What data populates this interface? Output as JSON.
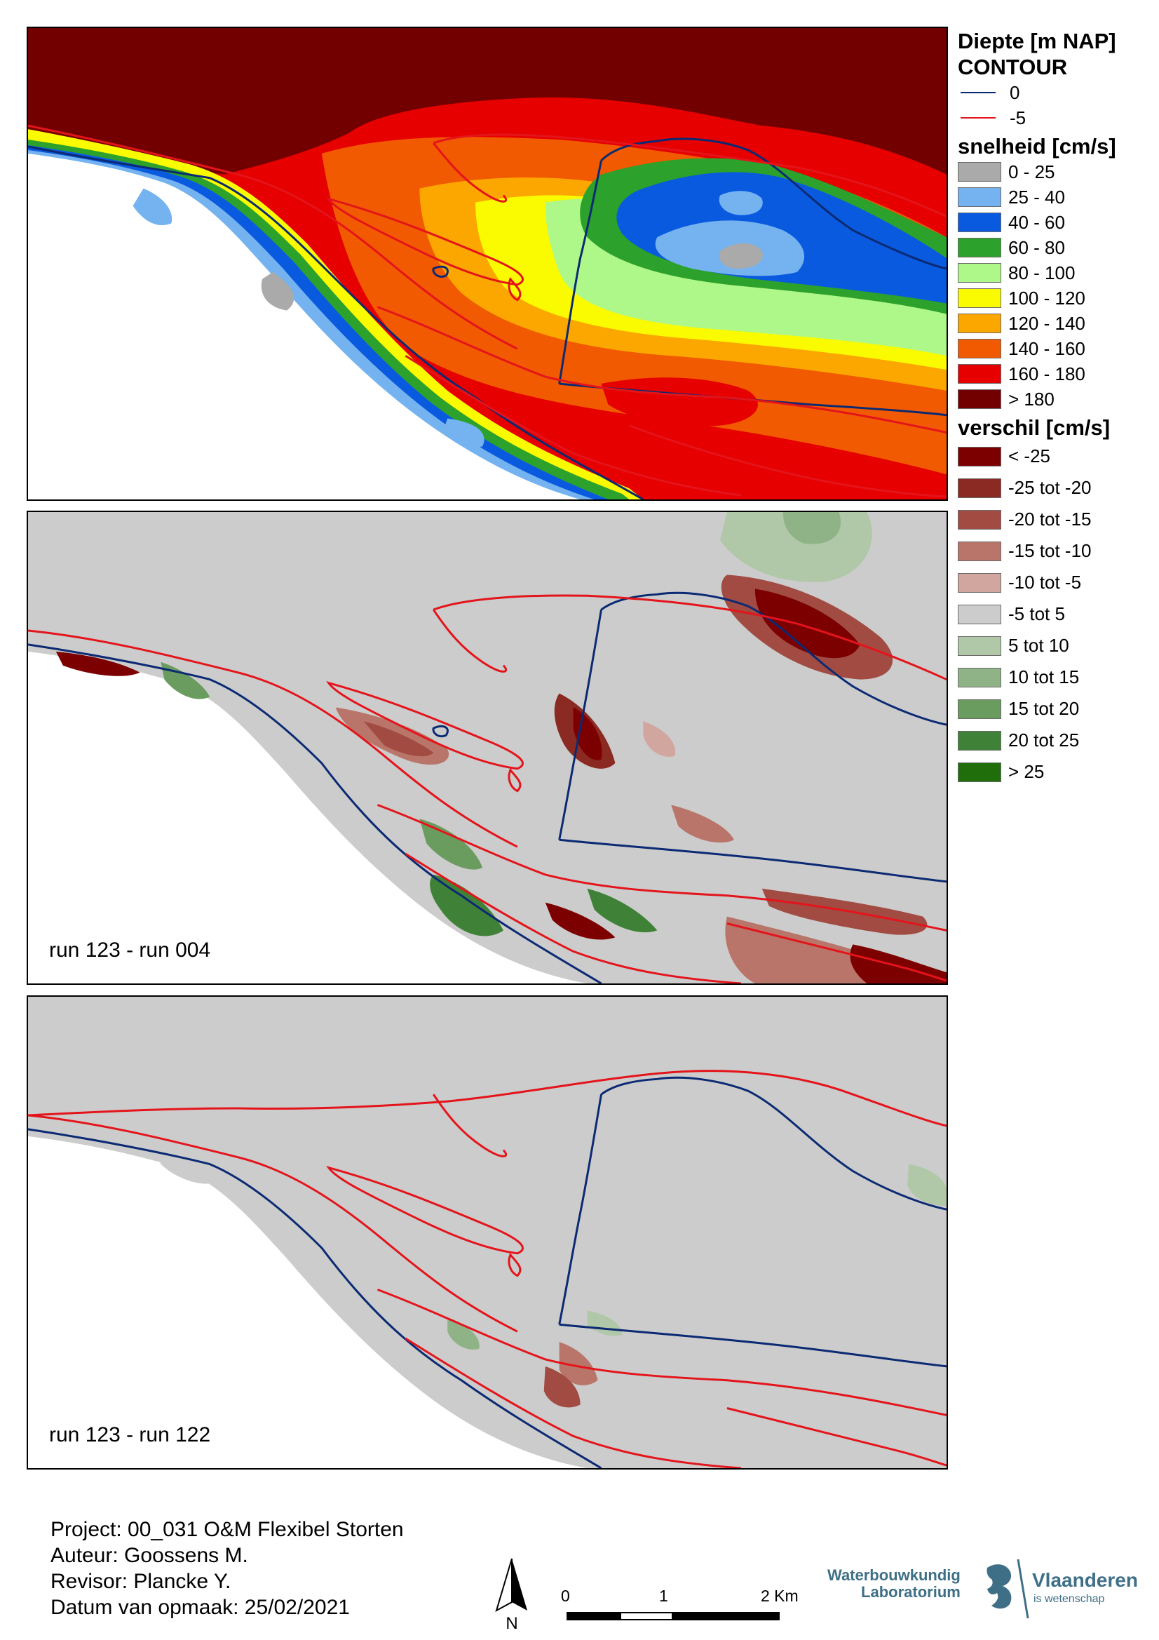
{
  "legend": {
    "depth_title": "Diepte [m NAP]",
    "contour_title": "CONTOUR",
    "contours": [
      {
        "label": "0",
        "color": "#0b2a73"
      },
      {
        "label": "-5",
        "color": "#e4141b"
      }
    ],
    "speed_title": "snelheid [cm/s]",
    "speed_classes": [
      {
        "label": "0 - 25",
        "color": "#aaaaaa"
      },
      {
        "label": "25 - 40",
        "color": "#74b3f0"
      },
      {
        "label": "40 - 60",
        "color": "#0a5ae0"
      },
      {
        "label": "60 - 80",
        "color": "#2ca12c"
      },
      {
        "label": "80 - 100",
        "color": "#aef889"
      },
      {
        "label": "100 - 120",
        "color": "#fbfb00"
      },
      {
        "label": "120 - 140",
        "color": "#fba700"
      },
      {
        "label": "140 - 160",
        "color": "#f15a00"
      },
      {
        "label": "160 - 180",
        "color": "#e60000"
      },
      {
        "label": "> 180",
        "color": "#730000"
      }
    ],
    "diff_title": "verschil [cm/s]",
    "diff_classes": [
      {
        "label": "< -25",
        "color": "#7c0000"
      },
      {
        "label": "-25 tot -20",
        "color": "#8a2a22"
      },
      {
        "label": "-20 tot -15",
        "color": "#a14b43"
      },
      {
        "label": "-15 tot -10",
        "color": "#b97569"
      },
      {
        "label": "-10 tot -5",
        "color": "#d1a69e"
      },
      {
        "label": "-5 tot 5",
        "color": "#cccccc"
      },
      {
        "label": "5 tot 10",
        "color": "#b0c7a8"
      },
      {
        "label": "10 tot 15",
        "color": "#8fb387"
      },
      {
        "label": "15 tot 20",
        "color": "#6b9c5f"
      },
      {
        "label": "20 tot 25",
        "color": "#3f8237"
      },
      {
        "label": "> 25",
        "color": "#1f6e0b"
      }
    ]
  },
  "panels": {
    "p2_label": "run 123 - run 004",
    "p3_label": "run 123 - run 122"
  },
  "footer": {
    "project": "Project: 00_031 O&M Flexibel Storten",
    "author": "Auteur: Goossens M.",
    "revisor": "Revisor: Plancke Y.",
    "date": "Datum van opmaak: 25/02/2021"
  },
  "north_label": "N",
  "scale": {
    "ticks": [
      "0",
      "1",
      "2 Km"
    ]
  },
  "logos": {
    "wl_line1": "Waterbouwkundig",
    "wl_line2": "Laboratorium",
    "vl_name": "Vlaanderen",
    "vl_sub": "is wetenschap"
  }
}
